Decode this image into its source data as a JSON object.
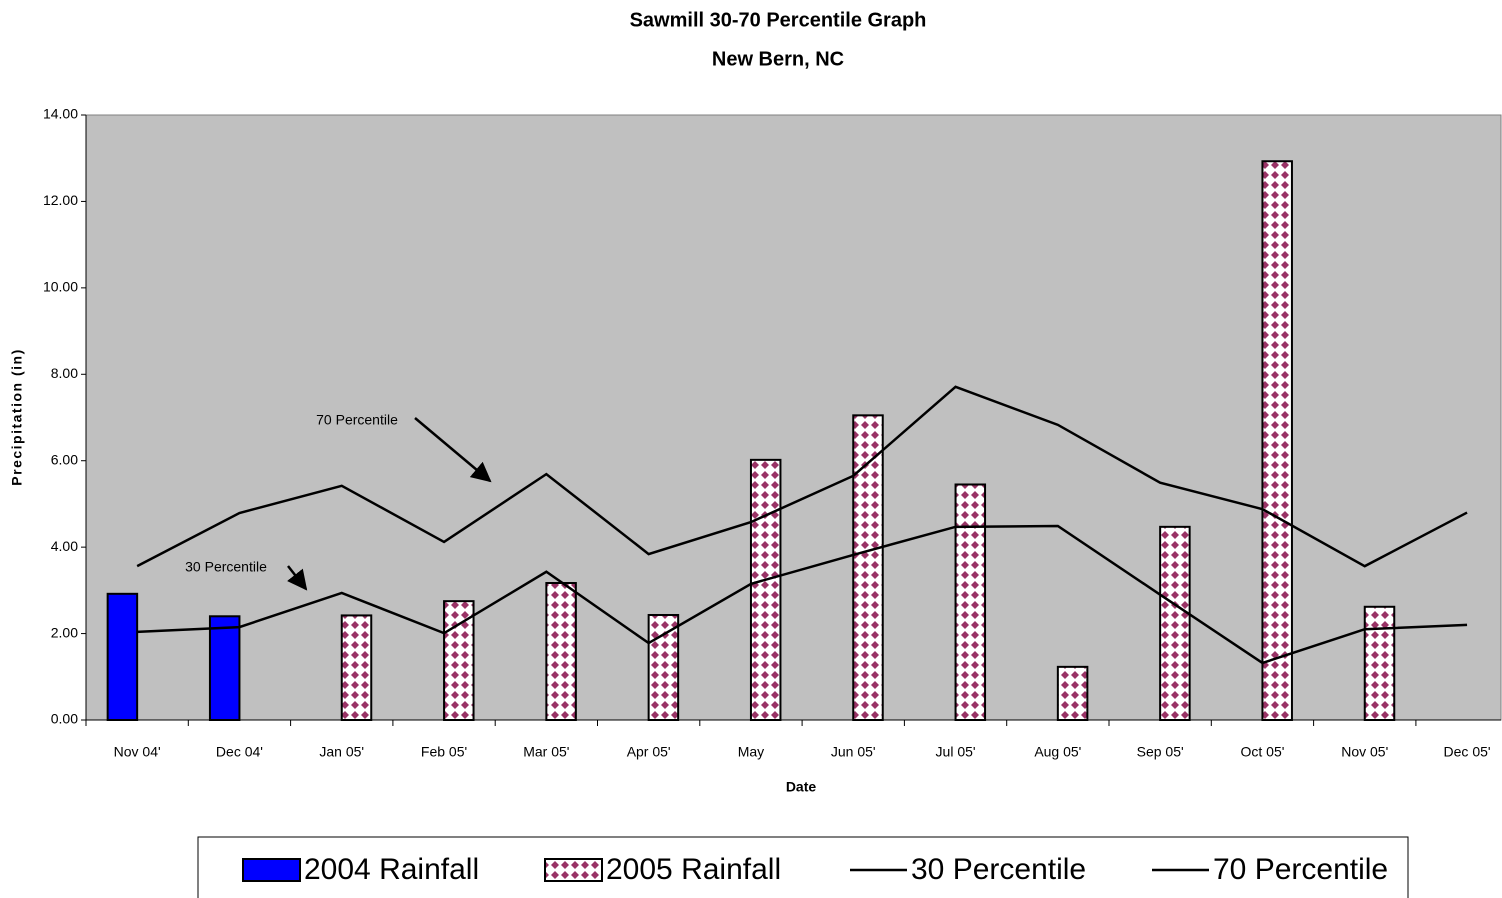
{
  "chart_data": {
    "type": "bar",
    "title": "Sawmill 30-70 Percentile Graph",
    "subtitle": "New Bern, NC",
    "x_label": "Date",
    "y_label": "Precipitation (in)",
    "categories": [
      "Nov 04'",
      "Dec 04'",
      "Jan 05'",
      "Feb 05'",
      "Mar 05'",
      "Apr 05'",
      "May",
      "Jun 05'",
      "Jul 05'",
      "Aug 05'",
      "Sep 05'",
      "Oct 05'",
      "Nov 05'",
      "Dec 05'"
    ],
    "series": [
      {
        "name": "2004 Rainfall",
        "type": "bar",
        "color": "#0000ff",
        "values": [
          2.92,
          2.4,
          null,
          null,
          null,
          null,
          null,
          null,
          null,
          null,
          null,
          null,
          null,
          null
        ]
      },
      {
        "name": "2005 Rainfall",
        "type": "bar",
        "color": "#993366",
        "pattern": "diamond",
        "values": [
          null,
          null,
          2.42,
          2.75,
          3.17,
          2.43,
          6.02,
          7.05,
          5.45,
          1.23,
          4.47,
          12.93,
          2.62,
          null
        ]
      },
      {
        "name": "30 Percentile",
        "type": "line",
        "color": "#000000",
        "values": [
          2.04,
          2.15,
          2.94,
          2.01,
          3.43,
          1.78,
          3.15,
          3.82,
          4.47,
          4.49,
          2.9,
          1.32,
          2.1,
          2.2
        ]
      },
      {
        "name": "70 Percentile",
        "type": "line",
        "color": "#000000",
        "values": [
          3.56,
          4.79,
          5.42,
          4.12,
          5.69,
          3.84,
          4.58,
          5.65,
          7.71,
          6.83,
          5.49,
          4.88,
          3.56,
          4.8
        ]
      }
    ],
    "annotations": [
      {
        "text": "70 Percentile"
      },
      {
        "text": "30 Percentile"
      }
    ],
    "ylim": [
      0,
      14
    ],
    "yticks": [
      {
        "value": 0,
        "label": "0.00"
      },
      {
        "value": 2,
        "label": "2.00"
      },
      {
        "value": 4,
        "label": "4.00"
      },
      {
        "value": 6,
        "label": "6.00"
      },
      {
        "value": 8,
        "label": "8.00"
      },
      {
        "value": 10,
        "label": "10.00"
      },
      {
        "value": 12,
        "label": "12.00"
      },
      {
        "value": 14,
        "label": "14.00"
      }
    ],
    "grid": false,
    "plot_background": "#c0c0c0",
    "legend": "bottom"
  }
}
